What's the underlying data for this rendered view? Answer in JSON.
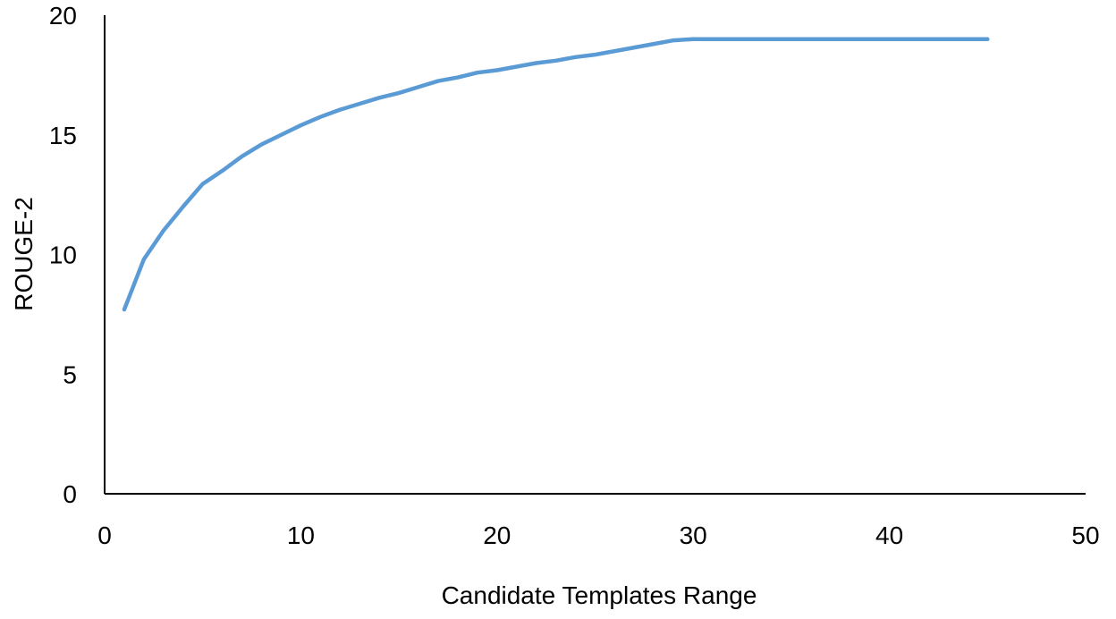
{
  "chart_data": {
    "type": "line",
    "title": "",
    "xlabel": "Candidate Templates Range",
    "ylabel": "ROUGE-2",
    "xlim": [
      0,
      50
    ],
    "ylim": [
      0,
      20
    ],
    "x_ticks": [
      0,
      10,
      20,
      30,
      40,
      50
    ],
    "y_ticks": [
      0,
      5,
      10,
      15,
      20
    ],
    "grid": false,
    "legend": "none",
    "series": [
      {
        "color": "#5b9bd5",
        "points": [
          [
            1,
            7.7
          ],
          [
            2,
            9.8
          ],
          [
            3,
            11.0
          ],
          [
            4,
            12.0
          ],
          [
            5,
            12.95
          ],
          [
            6,
            13.5
          ],
          [
            7,
            14.1
          ],
          [
            8,
            14.6
          ],
          [
            9,
            15.0
          ],
          [
            10,
            15.4
          ],
          [
            11,
            15.75
          ],
          [
            12,
            16.05
          ],
          [
            13,
            16.3
          ],
          [
            14,
            16.55
          ],
          [
            15,
            16.75
          ],
          [
            16,
            17.0
          ],
          [
            17,
            17.25
          ],
          [
            18,
            17.4
          ],
          [
            19,
            17.6
          ],
          [
            20,
            17.7
          ],
          [
            21,
            17.85
          ],
          [
            22,
            18.0
          ],
          [
            23,
            18.1
          ],
          [
            24,
            18.25
          ],
          [
            25,
            18.35
          ],
          [
            26,
            18.5
          ],
          [
            27,
            18.65
          ],
          [
            28,
            18.8
          ],
          [
            29,
            18.95
          ],
          [
            30,
            19.0
          ],
          [
            35,
            19.0
          ],
          [
            40,
            19.0
          ],
          [
            45,
            19.0
          ]
        ]
      }
    ]
  }
}
